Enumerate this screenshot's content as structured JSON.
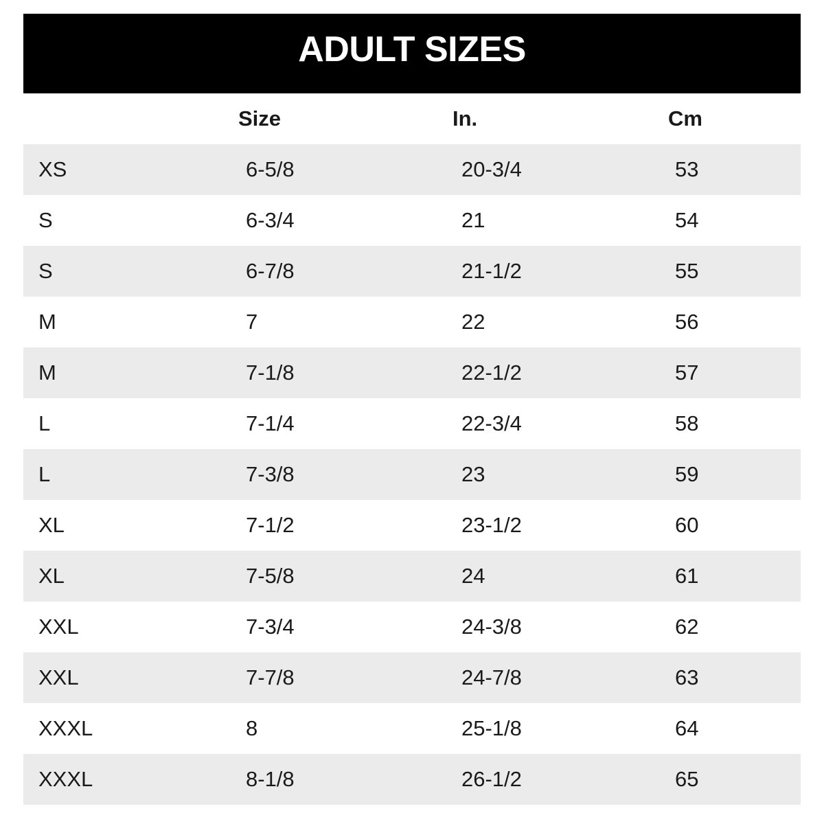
{
  "header": {
    "title": "ADULT SIZES"
  },
  "chart_data": {
    "type": "table",
    "title": "ADULT SIZES",
    "columns": [
      "",
      "Size",
      "In.",
      "Cm"
    ],
    "rows": [
      [
        "XS",
        "6-5/8",
        "20-3/4",
        "53"
      ],
      [
        "S",
        "6-3/4",
        "21",
        "54"
      ],
      [
        "S",
        "6-7/8",
        "21-1/2",
        "55"
      ],
      [
        "M",
        "7",
        "22",
        "56"
      ],
      [
        "M",
        "7-1/8",
        "22-1/2",
        "57"
      ],
      [
        "L",
        "7-1/4",
        "22-3/4",
        "58"
      ],
      [
        "L",
        "7-3/8",
        "23",
        "59"
      ],
      [
        "XL",
        "7-1/2",
        "23-1/2",
        "60"
      ],
      [
        "XL",
        "7-5/8",
        "24",
        "61"
      ],
      [
        "XXL",
        "7-3/4",
        "24-3/8",
        "62"
      ],
      [
        "XXL",
        "7-7/8",
        "24-7/8",
        "63"
      ],
      [
        "XXXL",
        "8",
        "25-1/8",
        "64"
      ],
      [
        "XXXL",
        "8-1/8",
        "26-1/2",
        "65"
      ]
    ],
    "layout": {
      "alternating_row_shading": true,
      "first_row_shaded": true,
      "grid": false,
      "header_position": "top"
    }
  },
  "colors": {
    "banner_bg": "#000000",
    "banner_text": "#ffffff",
    "alt_row_bg": "#ebebeb",
    "text": "#1a1a1a"
  }
}
